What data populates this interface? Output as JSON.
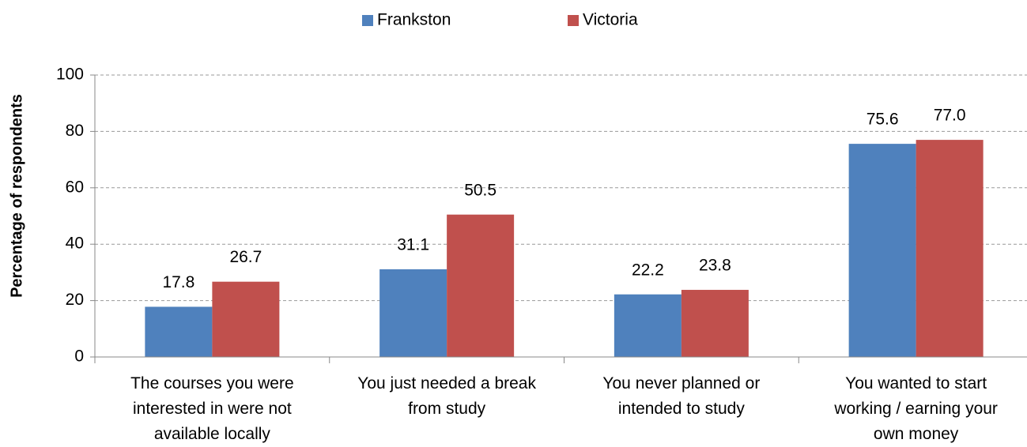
{
  "chart_data": {
    "type": "bar",
    "y_label": "Percentage of respondents",
    "categories": [
      "The courses you were interested in were not available locally",
      "You just needed a break from study",
      "You never planned or intended to study",
      "You wanted to start working / earning your own money"
    ],
    "series": [
      {
        "name": "Frankston",
        "color": "#4f81bd",
        "values": [
          17.8,
          31.1,
          22.2,
          75.6
        ],
        "value_labels": [
          "17.8",
          "31.1",
          "22.2",
          "75.6"
        ]
      },
      {
        "name": "Victoria",
        "color": "#c0504d",
        "values": [
          26.7,
          50.5,
          23.8,
          77.0
        ],
        "value_labels": [
          "26.7",
          "50.5",
          "23.8",
          "77.0"
        ]
      }
    ],
    "ylim": [
      0,
      100
    ],
    "yticks": [
      0,
      20,
      40,
      60,
      80,
      100
    ],
    "grid": true,
    "legend": "top"
  }
}
